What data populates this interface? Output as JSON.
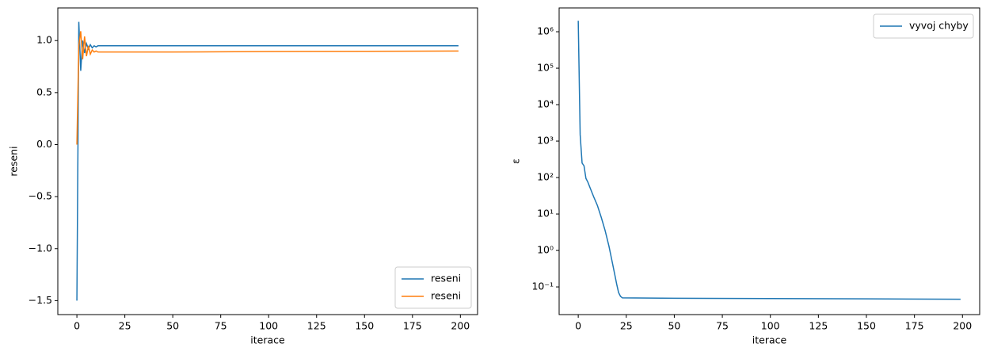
{
  "chart_data": [
    {
      "type": "line",
      "x_label": "iterace",
      "y_label": "reseni",
      "x": [
        0,
        1,
        2,
        3,
        4,
        5,
        6,
        7,
        8,
        9,
        10,
        11,
        12,
        15,
        20,
        50,
        100,
        150,
        199
      ],
      "series": [
        {
          "name": "reseni",
          "color": "#1f77b4",
          "values": [
            -1.5,
            1.18,
            0.71,
            1.0,
            0.88,
            0.97,
            0.92,
            0.96,
            0.93,
            0.95,
            0.94,
            0.95,
            0.95,
            0.95,
            0.95,
            0.95,
            0.95,
            0.95,
            0.95
          ]
        },
        {
          "name": "reseni",
          "color": "#ff7f0e",
          "values": [
            0.0,
            0.95,
            1.09,
            0.82,
            1.04,
            0.85,
            0.95,
            0.87,
            0.91,
            0.89,
            0.9,
            0.89,
            0.89,
            0.89,
            0.89,
            0.89,
            0.895,
            0.897,
            0.9
          ]
        }
      ],
      "xlim": [
        -9.95,
        208.95
      ],
      "xticks": [
        0,
        25,
        50,
        75,
        100,
        125,
        150,
        175,
        200
      ],
      "ylim": [
        -1.634,
        1.314
      ],
      "yticks": [
        {
          "value": -1.5,
          "label": "−1.5"
        },
        {
          "value": -1,
          "label": "−1.0"
        },
        {
          "value": -0.5,
          "label": "−0.5"
        },
        {
          "value": 0,
          "label": "0.0"
        },
        0.5,
        {
          "value": 1,
          "label": "1.0"
        }
      ],
      "legend": "lower right"
    },
    {
      "type": "line",
      "x_label": "iterace",
      "y_label": "ε",
      "yscale": "log",
      "x": [
        0,
        1,
        2,
        3,
        4,
        5,
        6,
        8,
        10,
        12,
        14,
        16,
        18,
        20,
        21,
        22,
        23,
        50,
        100,
        150,
        199
      ],
      "series": [
        {
          "name": "vyvoj chyby",
          "color": "#1f77b4",
          "values": [
            2000000,
            1500,
            250,
            210,
            95,
            75,
            55,
            30,
            17,
            8,
            3.5,
            1.3,
            0.4,
            0.12,
            0.07,
            0.055,
            0.05,
            0.049,
            0.048,
            0.047,
            0.046
          ]
        }
      ],
      "xlim": [
        -9.95,
        208.95
      ],
      "xticks": [
        0,
        25,
        50,
        75,
        100,
        125,
        150,
        175,
        200
      ],
      "ylim": [
        0.0174,
        4500000
      ],
      "yticks": [
        {
          "value": 0.1,
          "label": "10⁻¹"
        },
        {
          "value": 1,
          "label": "10⁰"
        },
        {
          "value": 10,
          "label": "10¹"
        },
        {
          "value": 100,
          "label": "10²"
        },
        {
          "value": 1000,
          "label": "10³"
        },
        {
          "value": 10000,
          "label": "10⁴"
        },
        {
          "value": 100000,
          "label": "10⁵"
        },
        {
          "value": 1000000,
          "label": "10⁶"
        }
      ],
      "legend": "upper right"
    }
  ]
}
